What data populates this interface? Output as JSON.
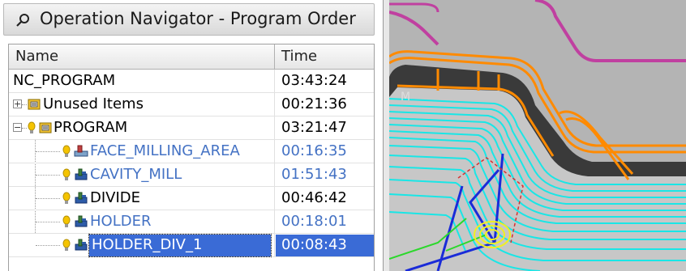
{
  "panel": {
    "title": "Operation Navigator - Program Order",
    "columns": {
      "name": "Name",
      "time": "Time"
    }
  },
  "rows": [
    {
      "name": "NC_PROGRAM",
      "time": "03:43:24",
      "color": "#1a1a1a",
      "icon": "none"
    },
    {
      "name": "Unused Items",
      "time": "00:21:36",
      "color": "#1a1a1a",
      "icon": "program-group-icon"
    },
    {
      "name": "PROGRAM",
      "time": "03:21:47",
      "color": "#1a1a1a",
      "icon": "program-group-icon"
    },
    {
      "name": "FACE_MILLING_AREA",
      "time": "00:16:35",
      "color": "#4472c4",
      "icon": "face-milling-icon"
    },
    {
      "name": "CAVITY_MILL",
      "time": "01:51:43",
      "color": "#4472c4",
      "icon": "cavity-mill-icon"
    },
    {
      "name": "DIVIDE",
      "time": "00:46:42",
      "color": "#1a1a1a",
      "icon": "cavity-mill-icon"
    },
    {
      "name": "HOLDER",
      "time": "00:18:01",
      "color": "#4472c4",
      "icon": "cavity-mill-icon"
    },
    {
      "name": "HOLDER_DIV_1",
      "time": "00:08:43",
      "color": "#ffffff",
      "icon": "cavity-mill-icon",
      "selected": true
    }
  ],
  "colors": {
    "selection": "#3a6bd6",
    "status_yellow": "#f5c400",
    "toolpath_cyan": "#19e6e6",
    "toolpath_orange": "#ff8a00"
  },
  "viewport": {
    "watermark": "M"
  }
}
